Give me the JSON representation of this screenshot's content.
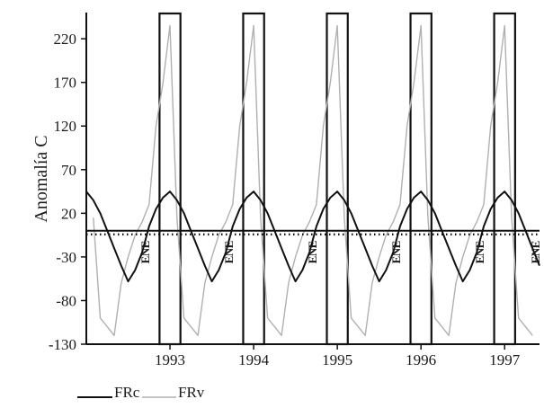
{
  "chart_data": {
    "type": "line",
    "ylabel": "Anomalía C",
    "ylim": [
      -130,
      250
    ],
    "yticks": [
      -130,
      -80,
      -30,
      20,
      70,
      120,
      170,
      220
    ],
    "x_tick_labels": [
      "1993",
      "1994",
      "1995",
      "1996",
      "1997"
    ],
    "x_tick_months": [
      12,
      24,
      36,
      48,
      60
    ],
    "x_range_months": [
      0,
      65
    ],
    "month_markers": {
      "label": "ENE",
      "positions": [
        8.5,
        20.5,
        32.5,
        44.5,
        56.5,
        64.5
      ]
    },
    "highlight_boxes": [
      {
        "from": 10.5,
        "to": 13.5
      },
      {
        "from": 22.5,
        "to": 25.5
      },
      {
        "from": 34.5,
        "to": 37.5
      },
      {
        "from": 46.5,
        "to": 49.5
      },
      {
        "from": 58.5,
        "to": 61.5
      }
    ],
    "series": [
      {
        "name": "FRc",
        "color": "#111111",
        "cycle_values": [
          45,
          35,
          20,
          0,
          -20,
          -40,
          -58,
          -45,
          -25,
          5,
          25,
          38
        ],
        "cycle_start": 12,
        "first_x": 0,
        "last_x": 65
      },
      {
        "name": "FRv",
        "color": "#b0b0b0",
        "cycle_values": [
          235,
          15,
          -100,
          -110,
          -120,
          -60,
          -30,
          -5,
          10,
          30,
          120,
          170
        ],
        "cycle_start": 12,
        "first_x": 1,
        "last_x": 64
      }
    ],
    "reference_line": {
      "y": 0,
      "style": "dotted-bold"
    },
    "legend": {
      "position": "bottom-left",
      "entries": [
        "FRc",
        "FRv"
      ]
    }
  }
}
